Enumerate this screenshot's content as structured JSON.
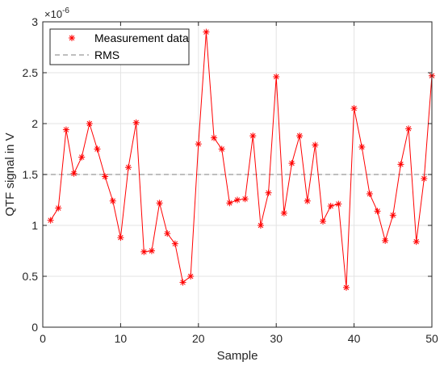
{
  "chart_data": {
    "type": "line",
    "xlabel": "Sample",
    "ylabel": "QTF signal in V",
    "y_exponent_base": "×10",
    "y_exponent_power": "-6",
    "xlim": [
      0,
      50
    ],
    "ylim": [
      0,
      3
    ],
    "xticks": [
      0,
      10,
      20,
      30,
      40,
      50
    ],
    "yticks": [
      0,
      0.5,
      1,
      1.5,
      2,
      2.5,
      3
    ],
    "xtick_labels": [
      "0",
      "10",
      "20",
      "30",
      "40",
      "50"
    ],
    "ytick_labels": [
      "0",
      "0.5",
      "1",
      "1.5",
      "2",
      "2.5",
      "3"
    ],
    "grid": true,
    "legend_position": "top-left",
    "series": [
      {
        "name": "Measurement data",
        "color": "#ff0000",
        "marker": "asterisk",
        "x": [
          1,
          2,
          3,
          4,
          5,
          6,
          7,
          8,
          9,
          10,
          11,
          12,
          13,
          14,
          15,
          16,
          17,
          18,
          19,
          20,
          21,
          22,
          23,
          24,
          25,
          26,
          27,
          28,
          29,
          30,
          31,
          32,
          33,
          34,
          35,
          36,
          37,
          38,
          39,
          40,
          41,
          42,
          43,
          44,
          45,
          46,
          47,
          48,
          49,
          50
        ],
        "values": [
          1.05,
          1.17,
          1.94,
          1.51,
          1.67,
          2.0,
          1.75,
          1.48,
          1.24,
          0.88,
          1.57,
          2.01,
          0.74,
          0.75,
          1.22,
          0.92,
          0.82,
          0.44,
          0.5,
          1.8,
          2.9,
          1.86,
          1.75,
          1.22,
          1.25,
          1.26,
          1.88,
          1.0,
          1.32,
          2.46,
          1.12,
          1.61,
          1.88,
          1.24,
          1.79,
          1.04,
          1.19,
          1.21,
          0.39,
          2.15,
          1.77,
          1.31,
          1.14,
          0.85,
          1.1,
          1.6,
          1.95,
          0.84,
          1.46,
          2.47
        ]
      },
      {
        "name": "RMS",
        "color": "#999999",
        "style": "dashed",
        "value": 1.5
      }
    ]
  }
}
